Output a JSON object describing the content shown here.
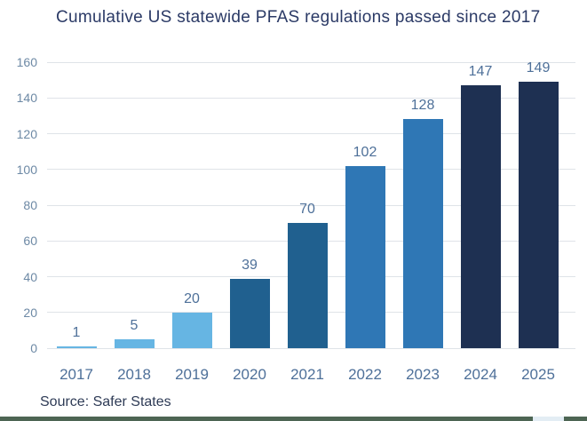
{
  "title": "Cumulative US statewide PFAS regulations passed since 2017",
  "source": "Source: Safer States",
  "colors": {
    "title_text": "#2b3a66",
    "axis_label": "#4e7099",
    "ytick_label": "#6d89a5",
    "gridline": "#dfe3e8",
    "source_text": "#2e3b56",
    "bottom_bar": "#4d6553",
    "bottom_bar_gap": "#e3edf4"
  },
  "chart_data": {
    "type": "bar",
    "title": "Cumulative US statewide PFAS regulations passed since 2017",
    "categories": [
      "2017",
      "2018",
      "2019",
      "2020",
      "2021",
      "2022",
      "2023",
      "2024",
      "2025"
    ],
    "values": [
      1,
      5,
      20,
      39,
      70,
      102,
      128,
      147,
      149
    ],
    "bar_colors": [
      "#66b5e3",
      "#66b5e3",
      "#66b5e3",
      "#20608f",
      "#20608f",
      "#2f77b5",
      "#2f77b5",
      "#1e3052",
      "#1e3052"
    ],
    "xlabel": "",
    "ylabel": "",
    "ylim": [
      0,
      160
    ],
    "ytick_step": 20,
    "grid": "horizontal",
    "legend": "none",
    "value_labels": true,
    "source": "Source: Safer States"
  }
}
